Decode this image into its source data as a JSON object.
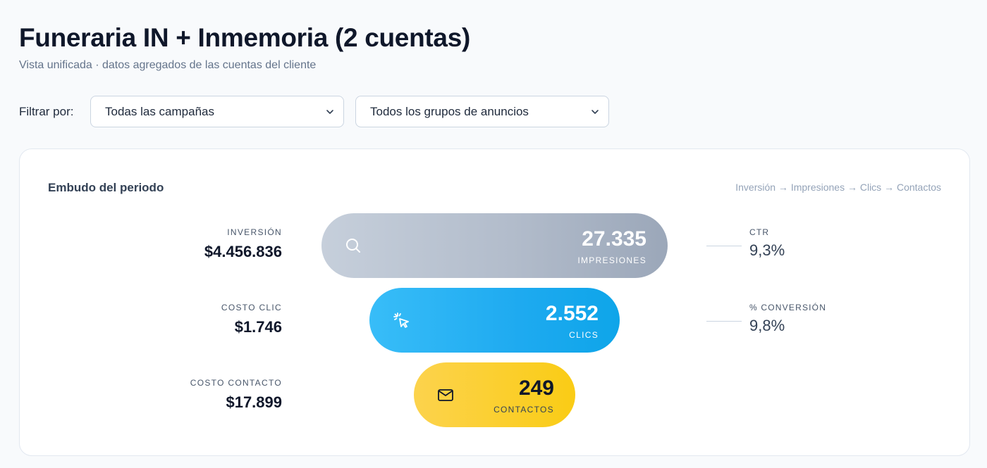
{
  "header": {
    "title": "Funeraria IN + Inmemoria (2 cuentas)",
    "subtitle": "Vista unificada · datos agregados de las cuentas del cliente"
  },
  "filters": {
    "label": "Filtrar por:",
    "campaign": {
      "value": "Todas las campañas",
      "icon": "chevron-down-icon"
    },
    "adgroup": {
      "value": "Todos los grupos de anuncios",
      "icon": "chevron-down-icon"
    }
  },
  "funnel": {
    "title": "Embudo del periodo",
    "flow": "Inversión → Impresiones → Clics → Contactos",
    "costs": [
      {
        "label": "INVERSIÓN",
        "value": "$4.456.836"
      },
      {
        "label": "COSTO CLIC",
        "value": "$1.746"
      },
      {
        "label": "COSTO CONTACTO",
        "value": "$17.899"
      }
    ],
    "stages": [
      {
        "value": "27.335",
        "unit": "IMPRESIONES",
        "icon": "search-icon",
        "color": "#b2bccb"
      },
      {
        "value": "2.552",
        "unit": "CLICS",
        "icon": "cursor-click-icon",
        "color": "#1eaaf0"
      },
      {
        "value": "249",
        "unit": "CONTACTOS",
        "icon": "mail-icon",
        "color": "#fbcf2e"
      }
    ],
    "rates": [
      {
        "label": "CTR",
        "value": "9,3%"
      },
      {
        "label": "% CONVERSIÓN",
        "value": "9,8%"
      }
    ]
  }
}
